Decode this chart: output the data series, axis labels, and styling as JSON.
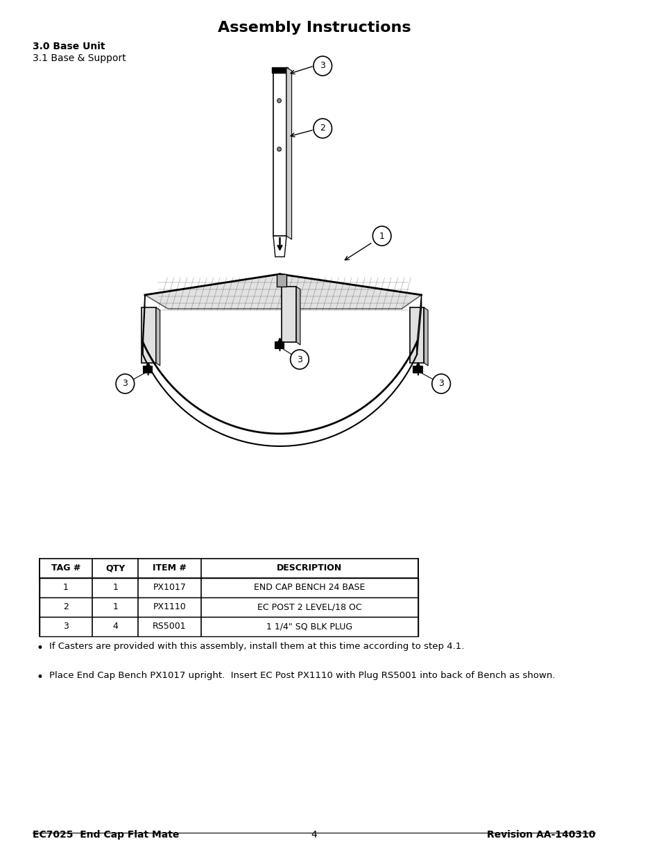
{
  "title": "Assembly Instructions",
  "section_heading": "3.0 Base Unit",
  "section_sub": "3.1 Base & Support",
  "table": {
    "headers": [
      "TAG #",
      "QTY",
      "ITEM #",
      "DESCRIPTION"
    ],
    "rows": [
      [
        "1",
        "1",
        "PX1017",
        "END CAP BENCH 24 BASE"
      ],
      [
        "2",
        "1",
        "PX1110",
        "EC POST 2 LEVEL/18 OC"
      ],
      [
        "3",
        "4",
        "RS5001",
        "1 1/4\" SQ BLK PLUG"
      ]
    ]
  },
  "bullets": [
    "If Casters are provided with this assembly, install them at this time according to step 4.1.",
    "Place End Cap Bench PX1017 upright.  Insert EC Post PX1110 with Plug RS5001 into back of Bench as shown."
  ],
  "footer_left": "EC7025  End Cap Flat Mate",
  "footer_center": "4",
  "footer_right": "Revision AA-140310",
  "bg_color": "#ffffff",
  "text_color": "#000000"
}
